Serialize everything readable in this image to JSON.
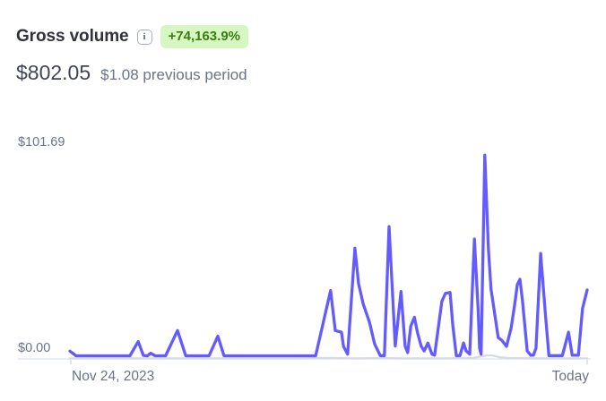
{
  "header": {
    "title": "Gross volume",
    "info_glyph": "i",
    "change_badge": "+74,163.9%",
    "amount": "$802.05",
    "previous": "$1.08 previous period"
  },
  "colors": {
    "accent_line": "#635bff",
    "prev_line": "#d5dbe1",
    "grid": "#e2e8ee",
    "tick": "#d5dbe1",
    "badge_bg": "#d7f7c2",
    "badge_text": "#3a7d0f",
    "title_text": "#30313d",
    "amount_text": "#414552",
    "muted_text": "#687385"
  },
  "chart_data": {
    "type": "line",
    "title": "Gross volume over period",
    "unit": "USD",
    "ylim": [
      0,
      101.69
    ],
    "y_max_label": "$101.69",
    "y_zero_label": "$0.00",
    "x_start_label": "Nov 24, 2023",
    "x_end_label": "Today",
    "legend": "none",
    "grid": "zero-line-only",
    "series": [
      {
        "name": "current_period",
        "color": "#635bff",
        "points": [
          [
            0.0,
            2.5
          ],
          [
            0.012,
            0.2
          ],
          [
            0.116,
            0.2
          ],
          [
            0.132,
            7.2
          ],
          [
            0.142,
            0.4
          ],
          [
            0.15,
            0.2
          ],
          [
            0.156,
            1.5
          ],
          [
            0.165,
            0.2
          ],
          [
            0.185,
            0.2
          ],
          [
            0.208,
            12.6
          ],
          [
            0.224,
            0.2
          ],
          [
            0.269,
            0.2
          ],
          [
            0.286,
            9.8
          ],
          [
            0.298,
            0.2
          ],
          [
            0.475,
            0.2
          ],
          [
            0.504,
            32.2
          ],
          [
            0.513,
            12.6
          ],
          [
            0.525,
            11.8
          ],
          [
            0.529,
            4.8
          ],
          [
            0.537,
            1.0
          ],
          [
            0.551,
            52.9
          ],
          [
            0.558,
            35.5
          ],
          [
            0.567,
            25.5
          ],
          [
            0.579,
            16.8
          ],
          [
            0.589,
            6.0
          ],
          [
            0.6,
            0.3
          ],
          [
            0.608,
            0.3
          ],
          [
            0.617,
            63.5
          ],
          [
            0.629,
            5.0
          ],
          [
            0.64,
            31.7
          ],
          [
            0.648,
            5.0
          ],
          [
            0.653,
            1.8
          ],
          [
            0.659,
            14.7
          ],
          [
            0.666,
            19.1
          ],
          [
            0.672,
            11.6
          ],
          [
            0.679,
            5.0
          ],
          [
            0.685,
            2.6
          ],
          [
            0.692,
            6.5
          ],
          [
            0.7,
            1.0
          ],
          [
            0.705,
            0.5
          ],
          [
            0.719,
            26.9
          ],
          [
            0.726,
            30.8
          ],
          [
            0.735,
            31.2
          ],
          [
            0.74,
            15.6
          ],
          [
            0.747,
            0.3
          ],
          [
            0.754,
            0.3
          ],
          [
            0.761,
            6.5
          ],
          [
            0.766,
            2.6
          ],
          [
            0.773,
            1.0
          ],
          [
            0.782,
            57.4
          ],
          [
            0.789,
            23.4
          ],
          [
            0.792,
            3.9
          ],
          [
            0.795,
            1.0
          ],
          [
            0.802,
            98.5
          ],
          [
            0.809,
            52.9
          ],
          [
            0.814,
            33.0
          ],
          [
            0.821,
            21.2
          ],
          [
            0.828,
            9.1
          ],
          [
            0.835,
            7.8
          ],
          [
            0.844,
            4.8
          ],
          [
            0.853,
            13.9
          ],
          [
            0.86,
            25.5
          ],
          [
            0.865,
            35.1
          ],
          [
            0.87,
            37.7
          ],
          [
            0.875,
            26.9
          ],
          [
            0.884,
            2.6
          ],
          [
            0.891,
            0.5
          ],
          [
            0.896,
            0.5
          ],
          [
            0.901,
            3.9
          ],
          [
            0.91,
            50.3
          ],
          [
            0.919,
            21.2
          ],
          [
            0.926,
            0.3
          ],
          [
            0.952,
            0.3
          ],
          [
            0.964,
            11.8
          ],
          [
            0.971,
            0.5
          ],
          [
            0.983,
            0.5
          ],
          [
            0.991,
            23.4
          ],
          [
            1.0,
            32.5
          ]
        ]
      },
      {
        "name": "previous_period",
        "color": "#d5dbe1",
        "points": [
          [
            0.0,
            0.1
          ],
          [
            0.3,
            0.1
          ],
          [
            0.45,
            0.1
          ],
          [
            0.5,
            0.3
          ],
          [
            0.55,
            0.1
          ],
          [
            0.6,
            0.2
          ],
          [
            0.65,
            0.1
          ],
          [
            0.72,
            0.1
          ],
          [
            0.78,
            0.2
          ],
          [
            0.8,
            1.3
          ],
          [
            0.815,
            1.6
          ],
          [
            0.83,
            0.6
          ],
          [
            0.85,
            0.2
          ],
          [
            0.9,
            0.1
          ],
          [
            0.95,
            0.1
          ],
          [
            1.0,
            0.1
          ]
        ]
      }
    ]
  }
}
